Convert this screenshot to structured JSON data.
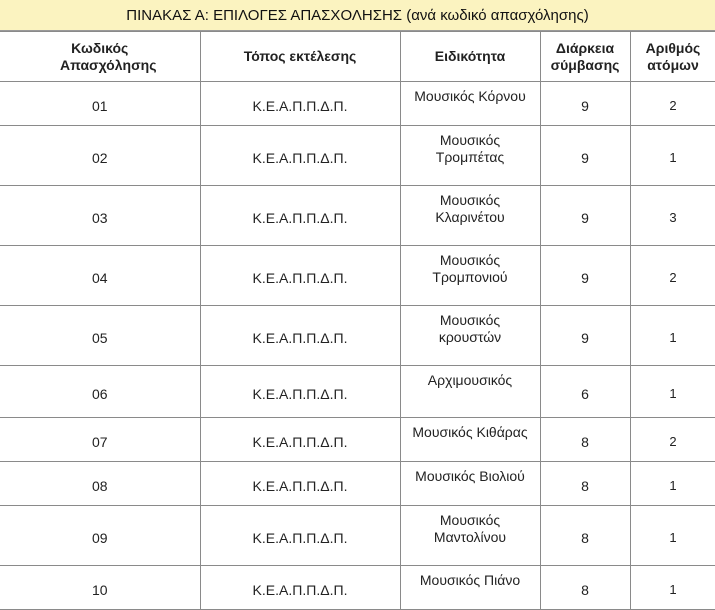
{
  "title": "ΠΙΝΑΚΑΣ Α: ΕΠΙΛΟΓΕΣ ΑΠΑΣΧΟΛΗΣΗΣ (ανά κωδικό απασχόλησης)",
  "columns": [
    "Κωδικός Απασχόλησης",
    "Τόπος εκτέλεσης",
    "Ειδικότητα",
    "Διάρκεια σύμβασης",
    "Αριθμός ατόμων"
  ],
  "rows": [
    {
      "code": "01",
      "place": "Κ.Ε.Α.Π.Π.Δ.Π.",
      "specialty": "Μουσικός Κόρνου",
      "duration": "9",
      "persons": "2"
    },
    {
      "code": "02",
      "place": "Κ.Ε.Α.Π.Π.Δ.Π.",
      "specialty": "Μουσικός Τρομπέτας",
      "duration": "9",
      "persons": "1"
    },
    {
      "code": "03",
      "place": "Κ.Ε.Α.Π.Π.Δ.Π.",
      "specialty": "Μουσικός Κλαρινέτου",
      "duration": "9",
      "persons": "3"
    },
    {
      "code": "04",
      "place": "Κ.Ε.Α.Π.Π.Δ.Π.",
      "specialty": "Μουσικός Τρομπονιού",
      "duration": "9",
      "persons": "2"
    },
    {
      "code": "05",
      "place": "Κ.Ε.Α.Π.Π.Δ.Π.",
      "specialty": "Μουσικός κρουστών",
      "duration": "9",
      "persons": "1"
    },
    {
      "code": "06",
      "place": "Κ.Ε.Α.Π.Π.Δ.Π.",
      "specialty": "Αρχιμουσικός",
      "duration": "6",
      "persons": "1"
    },
    {
      "code": "07",
      "place": "Κ.Ε.Α.Π.Π.Δ.Π.",
      "specialty": "Μουσικός Κιθάρας",
      "duration": "8",
      "persons": "2"
    },
    {
      "code": "08",
      "place": "Κ.Ε.Α.Π.Π.Δ.Π.",
      "specialty": "Μουσικός Βιολιού",
      "duration": "8",
      "persons": "1"
    },
    {
      "code": "09",
      "place": "Κ.Ε.Α.Π.Π.Δ.Π.",
      "specialty": "Μουσικός Μαντολίνου",
      "duration": "8",
      "persons": "1"
    },
    {
      "code": "10",
      "place": "Κ.Ε.Α.Π.Π.Δ.Π.",
      "specialty": "Μουσικός Πιάνο",
      "duration": "8",
      "persons": "1"
    }
  ]
}
